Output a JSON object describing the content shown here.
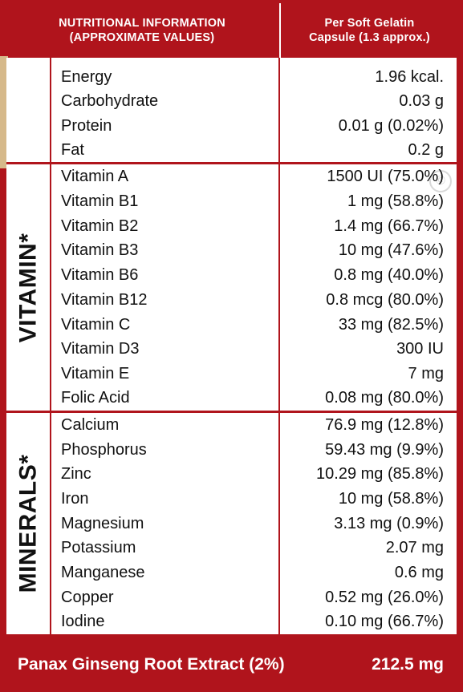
{
  "header": {
    "left_line1": "NUTRITIONAL INFORMATION",
    "left_line2": "(APPROXIMATE VALUES)",
    "right_line1": "Per Soft Gelatin",
    "right_line2": "Capsule (1.3 approx.)"
  },
  "general": [
    {
      "name": "Energy",
      "value": "1.96 kcal."
    },
    {
      "name": "Carbohydrate",
      "value": "0.03 g"
    },
    {
      "name": "Protein",
      "value": "0.01 g (0.02%)"
    },
    {
      "name": "Fat",
      "value": "0.2 g"
    }
  ],
  "vitamins": {
    "label": "VITAMIN*",
    "items": [
      {
        "name": "Vitamin A",
        "value": "1500 UI (75.0%)"
      },
      {
        "name": "Vitamin B1",
        "value": "1 mg (58.8%)"
      },
      {
        "name": "Vitamin B2",
        "value": "1.4 mg (66.7%)"
      },
      {
        "name": "Vitamin B3",
        "value": "10 mg (47.6%)"
      },
      {
        "name": "Vitamin B6",
        "value": "0.8 mg (40.0%)"
      },
      {
        "name": "Vitamin B12",
        "value": "0.8 mcg (80.0%)"
      },
      {
        "name": "Vitamin C",
        "value": "33 mg (82.5%)"
      },
      {
        "name": "Vitamin D3",
        "value": "300 IU"
      },
      {
        "name": "Vitamin E",
        "value": "7 mg"
      },
      {
        "name": "Folic Acid",
        "value": "0.08 mg (80.0%)"
      }
    ]
  },
  "minerals": {
    "label": "MINERALS*",
    "items": [
      {
        "name": "Calcium",
        "value": "76.9 mg (12.8%)"
      },
      {
        "name": "Phosphorus",
        "value": "59.43 mg (9.9%)"
      },
      {
        "name": "Zinc",
        "value": "10.29 mg (85.8%)"
      },
      {
        "name": "Iron",
        "value": "10 mg (58.8%)"
      },
      {
        "name": "Magnesium",
        "value": "3.13 mg (0.9%)"
      },
      {
        "name": "Potassium",
        "value": "2.07 mg"
      },
      {
        "name": "Manganese",
        "value": "0.6 mg"
      },
      {
        "name": "Copper",
        "value": "0.52 mg (26.0%)"
      },
      {
        "name": "Iodine",
        "value": "0.10 mg (66.7%)"
      }
    ]
  },
  "footer": {
    "name": "Panax Ginseng Root Extract (2%)",
    "value": "212.5 mg"
  },
  "watermark_symbol": "©",
  "colors": {
    "frame": "#b0141c",
    "panel": "#ffffff"
  }
}
